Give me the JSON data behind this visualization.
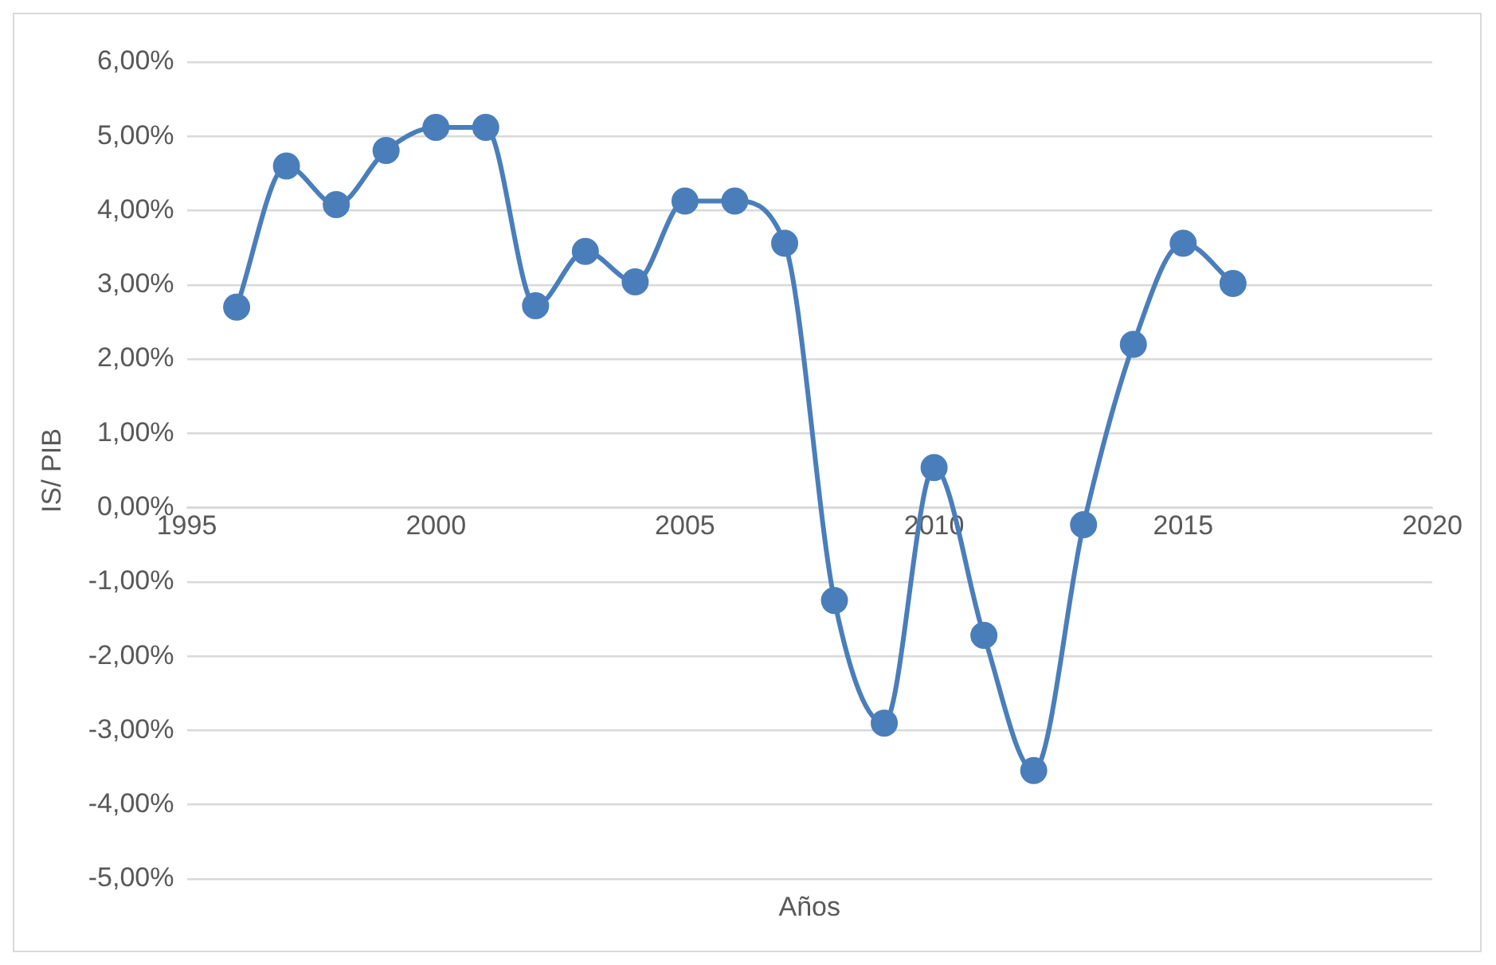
{
  "chart_data": {
    "type": "line",
    "xlabel": "Años",
    "ylabel": "IS/ PIB",
    "x": [
      1996,
      1997,
      1998,
      1999,
      2000,
      2001,
      2002,
      2003,
      2004,
      2005,
      2006,
      2007,
      2008,
      2009,
      2010,
      2011,
      2012,
      2013,
      2014,
      2015,
      2016
    ],
    "series": [
      {
        "color": "#4a7ebb",
        "values": [
          2.7,
          4.6,
          4.08,
          4.81,
          5.12,
          5.12,
          2.72,
          3.45,
          3.04,
          4.13,
          4.13,
          3.56,
          -1.25,
          -2.9,
          0.54,
          -1.72,
          -3.54,
          -0.23,
          2.2,
          3.56,
          3.02
        ]
      }
    ],
    "xlim": [
      1995,
      2020
    ],
    "xticks": [
      1995,
      2000,
      2005,
      2010,
      2015,
      2020
    ],
    "ylim": [
      -5,
      6
    ],
    "yticks": [
      {
        "value": -5,
        "label": "-5,00%"
      },
      {
        "value": -4,
        "label": "-4,00%"
      },
      {
        "value": -3,
        "label": "-3,00%"
      },
      {
        "value": -2,
        "label": "-2,00%"
      },
      {
        "value": -1,
        "label": "-1,00%"
      },
      {
        "value": 0,
        "label": "0,00%"
      },
      {
        "value": 1,
        "label": "1,00%"
      },
      {
        "value": 2,
        "label": "2,00%"
      },
      {
        "value": 3,
        "label": "3,00%"
      },
      {
        "value": 4,
        "label": "4,00%"
      },
      {
        "value": 5,
        "label": "5,00%"
      },
      {
        "value": 6,
        "label": "6,00%"
      }
    ],
    "grid": "y",
    "legend": false,
    "marker": "circle",
    "line_style": "solid"
  }
}
